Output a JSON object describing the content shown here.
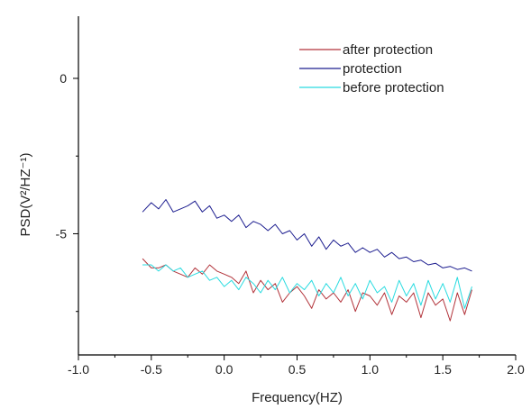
{
  "chart_data": {
    "type": "line",
    "xlabel": "Frequency(HZ)",
    "ylabel": "PSD(V²/HZ⁻¹)",
    "xlim": [
      -1.0,
      2.0
    ],
    "ylim": [
      -8.9,
      2.0
    ],
    "x_ticks": [
      -1.0,
      -0.5,
      0.0,
      0.5,
      1.0,
      1.5,
      2.0
    ],
    "x_tick_labels": [
      "-1.0",
      "-0.5",
      "0.0",
      "0.5",
      "1.0",
      "1.5",
      "2.0"
    ],
    "y_ticks": [
      0,
      -5
    ],
    "y_tick_labels": [
      "0",
      "-5"
    ],
    "grid": false,
    "legend_position": "top-right",
    "series": [
      {
        "name": "after protection",
        "color": "#b2333a",
        "x": [
          -0.56,
          -0.5,
          -0.45,
          -0.4,
          -0.35,
          -0.3,
          -0.25,
          -0.2,
          -0.15,
          -0.1,
          -0.05,
          0.0,
          0.05,
          0.1,
          0.15,
          0.2,
          0.25,
          0.3,
          0.35,
          0.4,
          0.45,
          0.5,
          0.55,
          0.6,
          0.65,
          0.7,
          0.75,
          0.8,
          0.85,
          0.9,
          0.95,
          1.0,
          1.05,
          1.1,
          1.15,
          1.2,
          1.25,
          1.3,
          1.35,
          1.4,
          1.45,
          1.5,
          1.55,
          1.6,
          1.65,
          1.7
        ],
        "y": [
          -5.8,
          -6.1,
          -6.1,
          -6.0,
          -6.2,
          -6.3,
          -6.4,
          -6.1,
          -6.3,
          -6.0,
          -6.2,
          -6.3,
          -6.4,
          -6.6,
          -6.2,
          -6.9,
          -6.5,
          -6.8,
          -6.6,
          -7.2,
          -6.9,
          -6.7,
          -7.0,
          -7.4,
          -6.8,
          -7.1,
          -6.9,
          -7.2,
          -6.8,
          -7.5,
          -6.9,
          -7.0,
          -7.3,
          -6.9,
          -7.6,
          -7.0,
          -7.2,
          -6.9,
          -7.7,
          -6.9,
          -7.3,
          -7.1,
          -7.8,
          -6.9,
          -7.6,
          -6.8
        ]
      },
      {
        "name": "protection",
        "color": "#1c1d8f",
        "x": [
          -0.56,
          -0.5,
          -0.45,
          -0.4,
          -0.35,
          -0.3,
          -0.25,
          -0.2,
          -0.15,
          -0.1,
          -0.05,
          0.0,
          0.05,
          0.1,
          0.15,
          0.2,
          0.25,
          0.3,
          0.35,
          0.4,
          0.45,
          0.5,
          0.55,
          0.6,
          0.65,
          0.7,
          0.75,
          0.8,
          0.85,
          0.9,
          0.95,
          1.0,
          1.05,
          1.1,
          1.15,
          1.2,
          1.25,
          1.3,
          1.35,
          1.4,
          1.45,
          1.5,
          1.55,
          1.6,
          1.65,
          1.7
        ],
        "y": [
          -4.3,
          -4.0,
          -4.2,
          -3.9,
          -4.3,
          -4.2,
          -4.1,
          -3.95,
          -4.3,
          -4.1,
          -4.5,
          -4.4,
          -4.6,
          -4.4,
          -4.8,
          -4.6,
          -4.7,
          -4.9,
          -4.7,
          -5.0,
          -4.9,
          -5.2,
          -5.0,
          -5.4,
          -5.1,
          -5.5,
          -5.2,
          -5.4,
          -5.3,
          -5.6,
          -5.45,
          -5.6,
          -5.5,
          -5.75,
          -5.6,
          -5.8,
          -5.75,
          -5.9,
          -5.85,
          -6.0,
          -5.95,
          -6.1,
          -6.05,
          -6.15,
          -6.1,
          -6.2
        ]
      },
      {
        "name": "before protection",
        "color": "#29dbe0",
        "x": [
          -0.56,
          -0.5,
          -0.45,
          -0.4,
          -0.35,
          -0.3,
          -0.25,
          -0.2,
          -0.15,
          -0.1,
          -0.05,
          0.0,
          0.05,
          0.1,
          0.15,
          0.2,
          0.25,
          0.3,
          0.35,
          0.4,
          0.45,
          0.5,
          0.55,
          0.6,
          0.65,
          0.7,
          0.75,
          0.8,
          0.85,
          0.9,
          0.95,
          1.0,
          1.05,
          1.1,
          1.15,
          1.2,
          1.25,
          1.3,
          1.35,
          1.4,
          1.45,
          1.5,
          1.55,
          1.6,
          1.65,
          1.7
        ],
        "y": [
          -6.0,
          -6.0,
          -6.2,
          -6.0,
          -6.2,
          -6.1,
          -6.4,
          -6.3,
          -6.2,
          -6.5,
          -6.4,
          -6.7,
          -6.5,
          -6.8,
          -6.4,
          -6.6,
          -6.9,
          -6.5,
          -6.8,
          -6.4,
          -6.9,
          -6.6,
          -6.8,
          -6.5,
          -7.0,
          -6.6,
          -6.9,
          -6.4,
          -7.0,
          -6.6,
          -7.1,
          -6.5,
          -6.9,
          -6.7,
          -7.2,
          -6.5,
          -7.0,
          -6.6,
          -7.3,
          -6.5,
          -7.1,
          -6.6,
          -7.2,
          -6.4,
          -7.4,
          -6.7
        ]
      }
    ]
  }
}
